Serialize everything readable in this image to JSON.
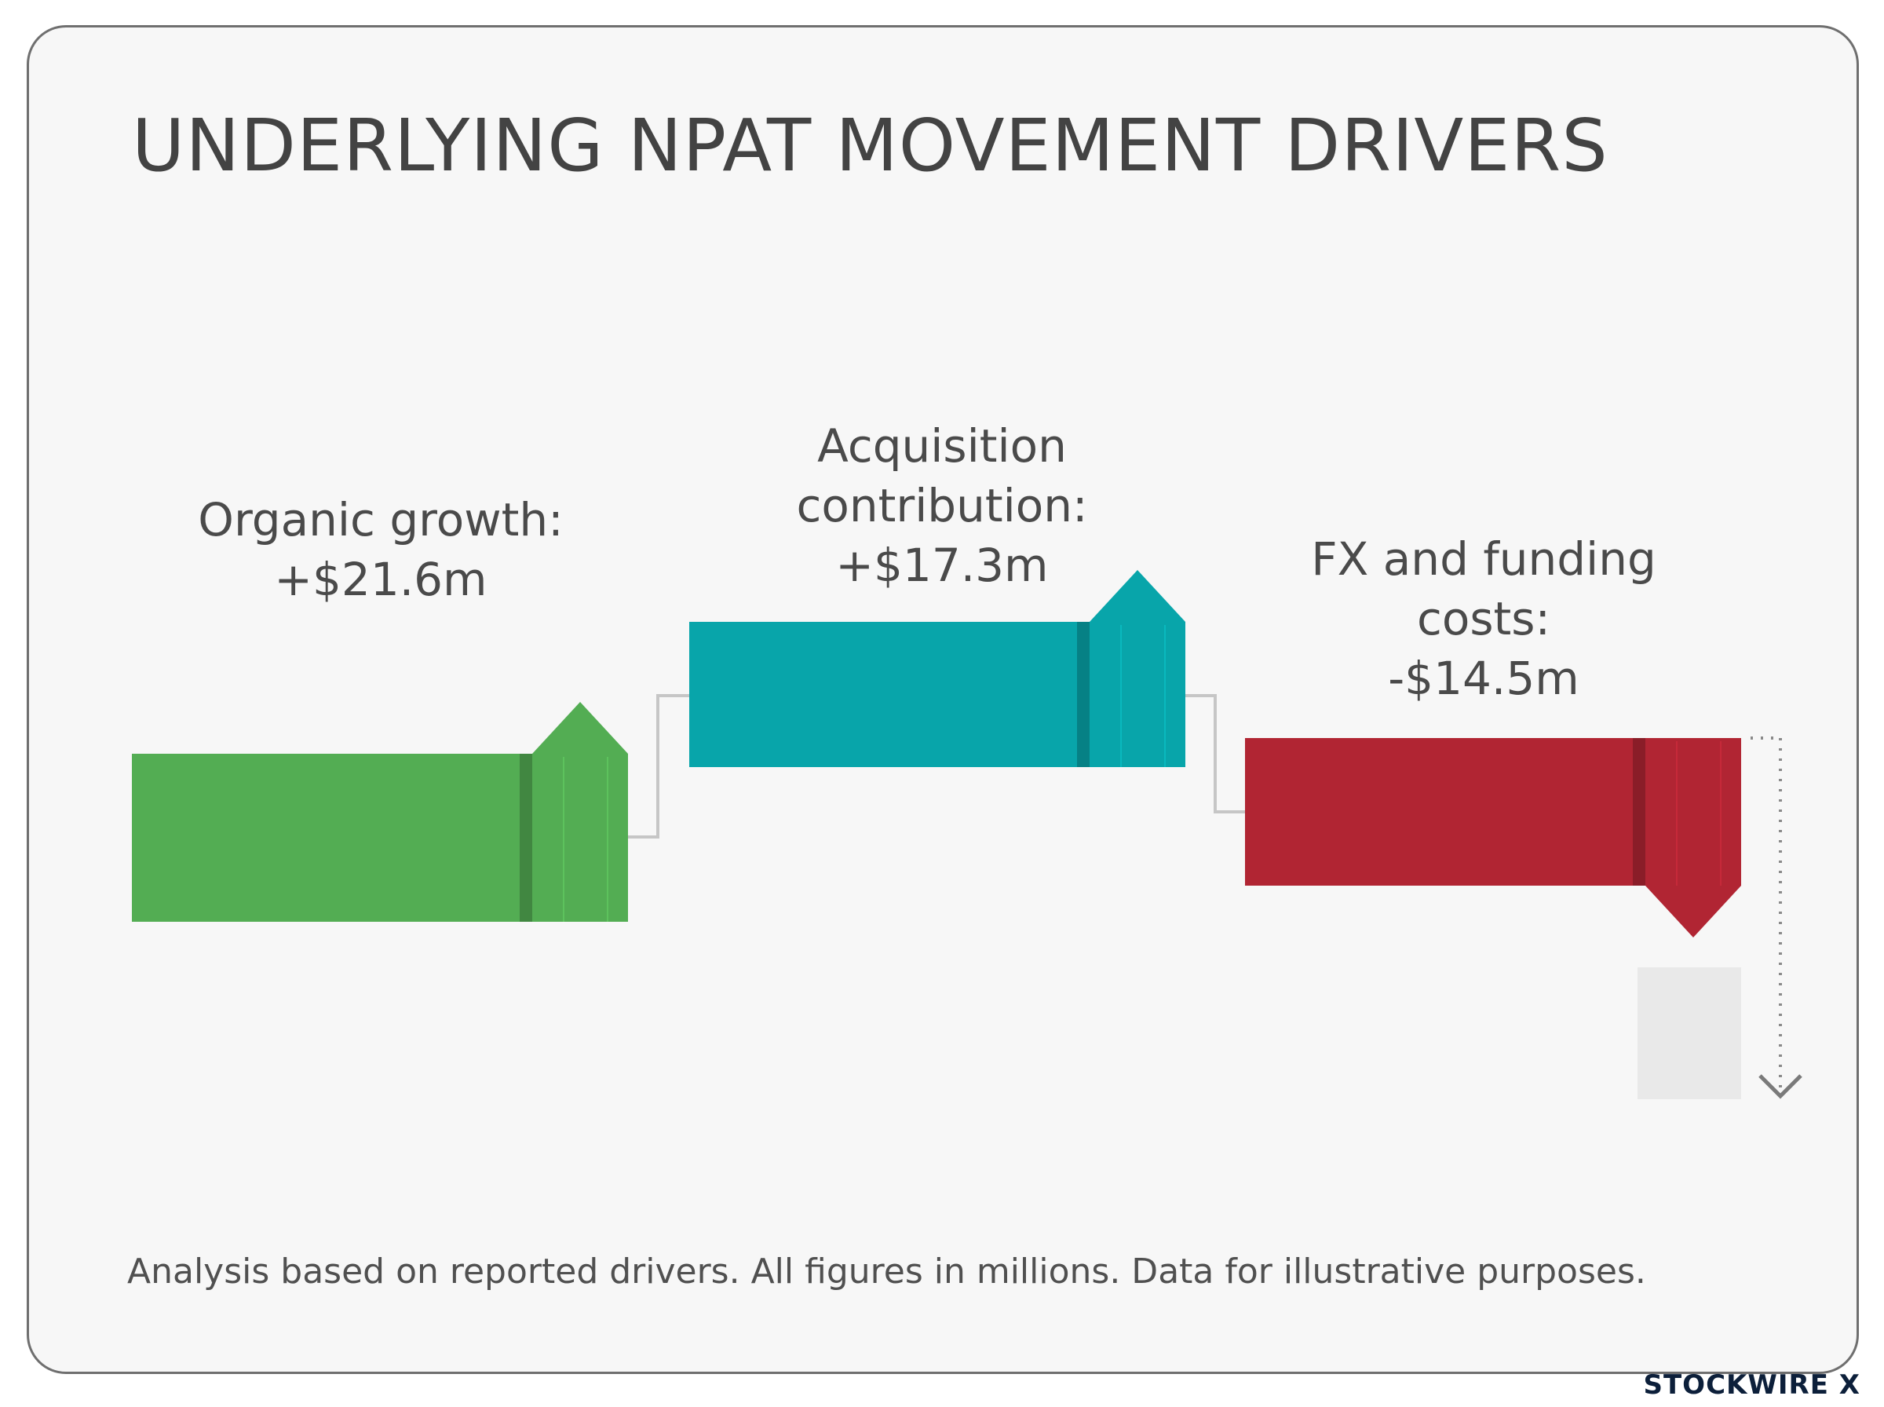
{
  "title": "UNDERLYING NPAT MOVEMENT DRIVERS",
  "footnote": "Analysis based on reported drivers. All figures in millions. Data for illustrative purposes.",
  "brand": "STOCKWIRE X",
  "chart_data": {
    "type": "bar",
    "variant": "waterfall",
    "categories": [
      "Organic growth:",
      "Acquisition contribution:",
      "FX and funding costs:"
    ],
    "values": [
      21.6,
      17.3,
      -14.5
    ],
    "value_labels": [
      "+$21.6m",
      "+$17.3m",
      "-$14.5m"
    ],
    "colors": [
      "#53ad53",
      "#08a5aa",
      "#b12533"
    ],
    "grid": false,
    "legend": "none",
    "title": "UNDERLYING NPAT MOVEMENT DRIVERS"
  }
}
